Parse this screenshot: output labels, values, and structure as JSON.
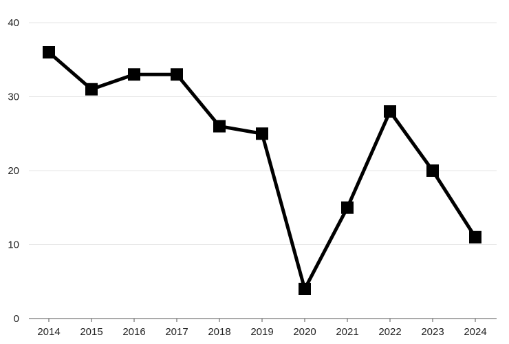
{
  "chart_data": {
    "type": "line",
    "categories": [
      "2014",
      "2015",
      "2016",
      "2017",
      "2018",
      "2019",
      "2020",
      "2021",
      "2022",
      "2023",
      "2024"
    ],
    "series": [
      {
        "values": [
          36,
          31,
          33,
          33,
          26,
          25,
          4,
          15,
          28,
          20,
          11
        ]
      }
    ],
    "y_ticks": [
      "0",
      "10",
      "20",
      "30",
      "40"
    ],
    "ylim": [
      0,
      40
    ],
    "grid": "horizontal",
    "title": "",
    "xlabel": "",
    "ylabel": "",
    "legend": "none",
    "line_color": "#000000",
    "marker": "square",
    "grid_color": "#e6e6e6"
  }
}
